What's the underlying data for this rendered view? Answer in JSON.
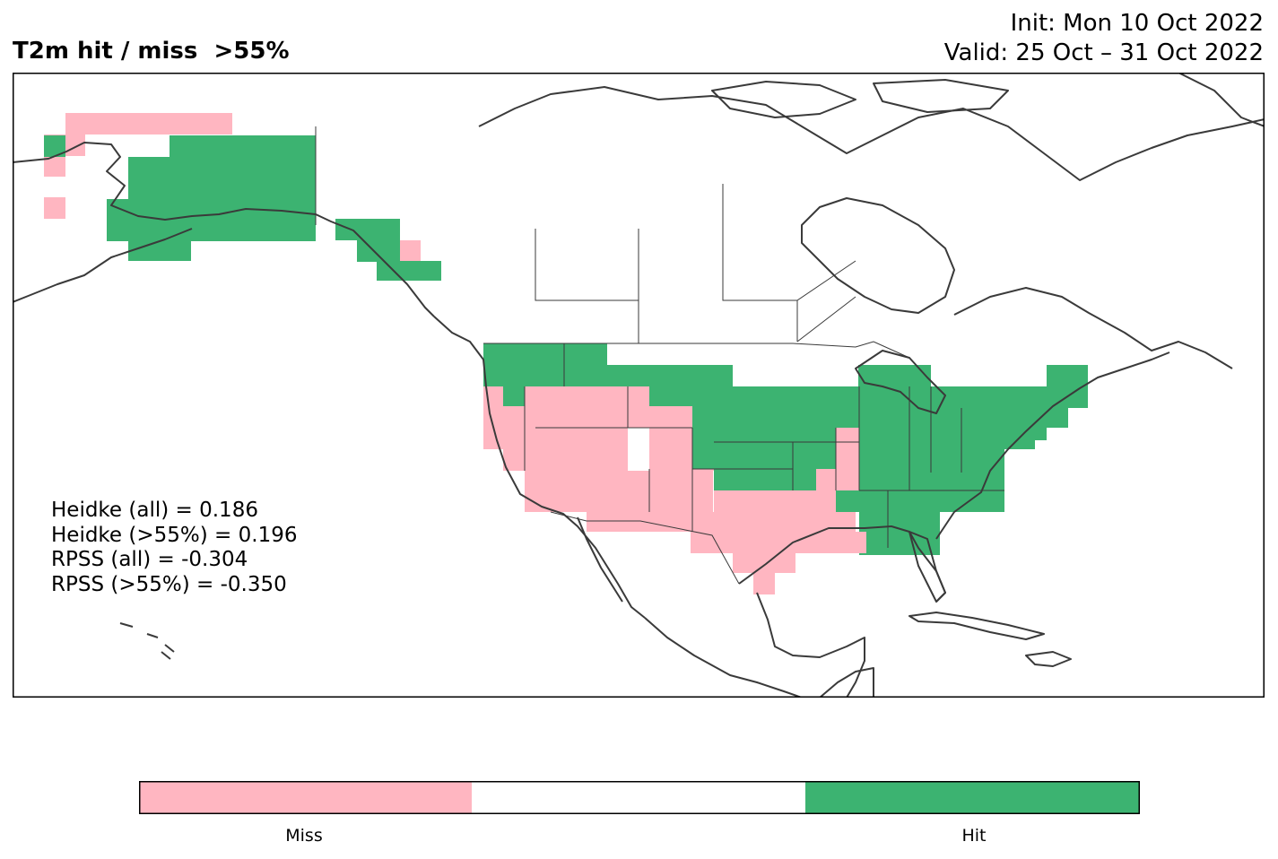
{
  "title": {
    "left": "T2m hit / miss  >55%",
    "init": "Init: Mon 10 Oct 2022",
    "valid": "Valid: 25 Oct – 31 Oct 2022"
  },
  "scores": [
    "Heidke (all) = 0.186",
    "Heidke (>55%) = 0.196",
    "RPSS (all) = -0.304",
    "RPSS (>55%) = -0.350"
  ],
  "colorbar": {
    "labels": [
      "Miss",
      "Hit"
    ],
    "colors": [
      "#ffb6c1",
      "#ffffff",
      "#3cb371"
    ]
  },
  "colors": {
    "miss": "#ffb6c1",
    "hit": "#3cb371",
    "coast": "#3a3a3a"
  }
}
